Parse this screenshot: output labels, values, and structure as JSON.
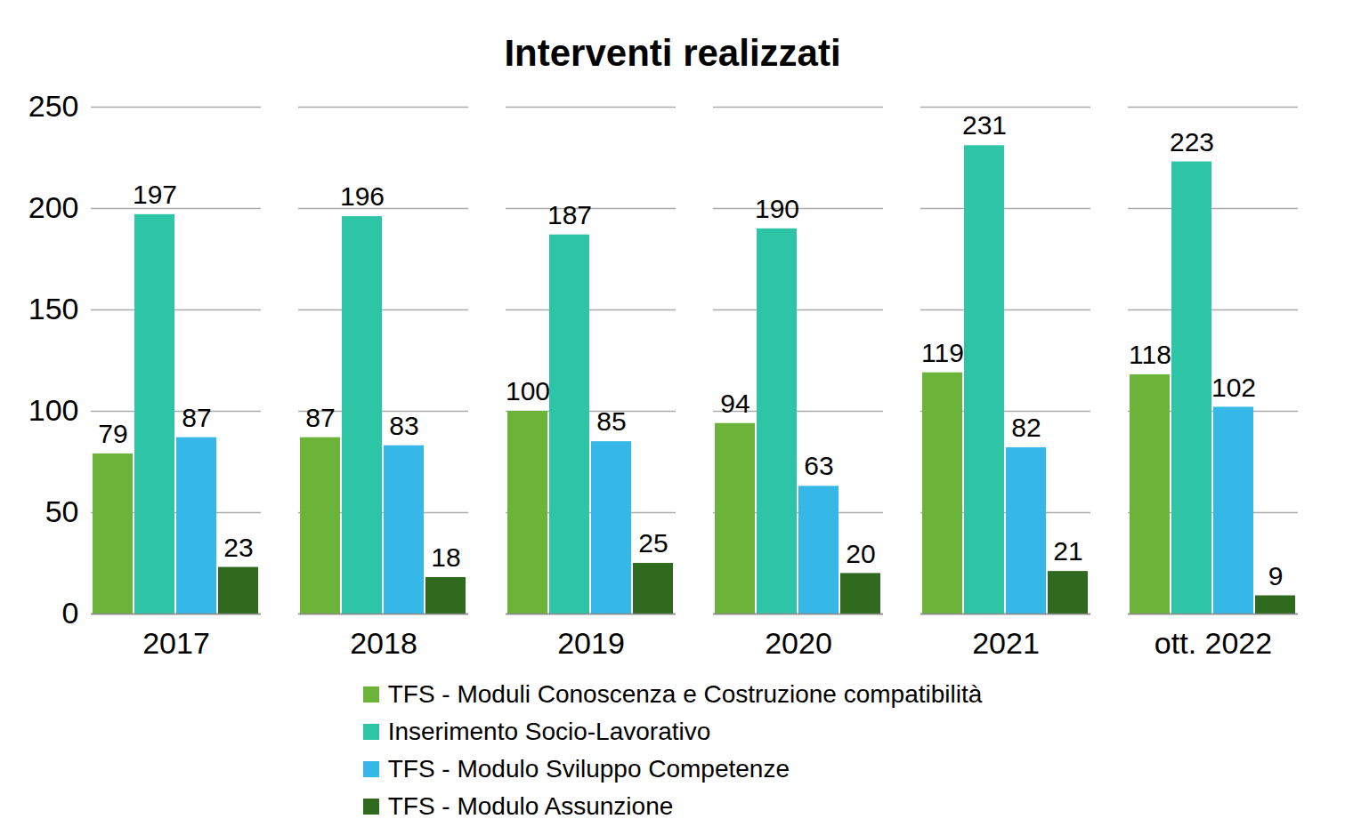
{
  "chart_data": {
    "type": "bar",
    "title": "Interventi realizzati",
    "categories": [
      "2017",
      "2018",
      "2019",
      "2020",
      "2021",
      "ott. 2022"
    ],
    "series": [
      {
        "name": "TFS - Moduli Conoscenza e Costruzione compatibilità",
        "color": "#6cb33a",
        "values": [
          79,
          87,
          100,
          94,
          119,
          118
        ]
      },
      {
        "name": "Inserimento Socio-Lavorativo",
        "color": "#2ec4a6",
        "values": [
          197,
          196,
          187,
          190,
          231,
          223
        ]
      },
      {
        "name": "TFS - Modulo Sviluppo Competenze",
        "color": "#35b7e8",
        "values": [
          87,
          83,
          85,
          63,
          82,
          102
        ]
      },
      {
        "name": "TFS - Modulo Assunzione",
        "color": "#2f6a1f",
        "values": [
          23,
          18,
          25,
          20,
          21,
          9
        ]
      }
    ],
    "ylim": [
      0,
      250
    ],
    "yticks": [
      0,
      50,
      100,
      150,
      200,
      250
    ],
    "grid": true,
    "legend": "bottom",
    "data_labels": true
  }
}
